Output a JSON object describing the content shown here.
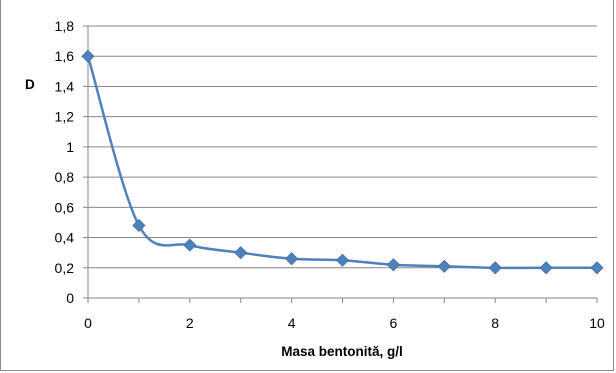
{
  "chart_data": {
    "type": "line",
    "title": "",
    "xlabel": "Masa bentonită, g/l",
    "ylabel": "D",
    "xlim": [
      0,
      10
    ],
    "ylim": [
      0,
      1.8
    ],
    "x_ticks": [
      0,
      2,
      4,
      6,
      8,
      10
    ],
    "x_tick_labels": [
      "0",
      "2",
      "4",
      "6",
      "8",
      "10"
    ],
    "y_ticks": [
      0,
      0.2,
      0.4,
      0.6,
      0.8,
      1,
      1.2,
      1.4,
      1.6,
      1.8
    ],
    "y_tick_labels": [
      "0",
      "0,2",
      "0,4",
      "0,6",
      "0,8",
      "1",
      "1,2",
      "1,4",
      "1,6",
      "1,8"
    ],
    "grid": {
      "horizontal": true,
      "vertical": false
    },
    "smooth": true,
    "marker": "diamond",
    "legend": "none",
    "series": [
      {
        "color": "#4f81bd",
        "x": [
          0,
          1,
          2,
          3,
          4,
          5,
          6,
          7,
          8,
          9,
          10
        ],
        "y": [
          1.6,
          0.48,
          0.35,
          0.3,
          0.26,
          0.25,
          0.22,
          0.21,
          0.2,
          0.2,
          0.2
        ]
      }
    ]
  }
}
